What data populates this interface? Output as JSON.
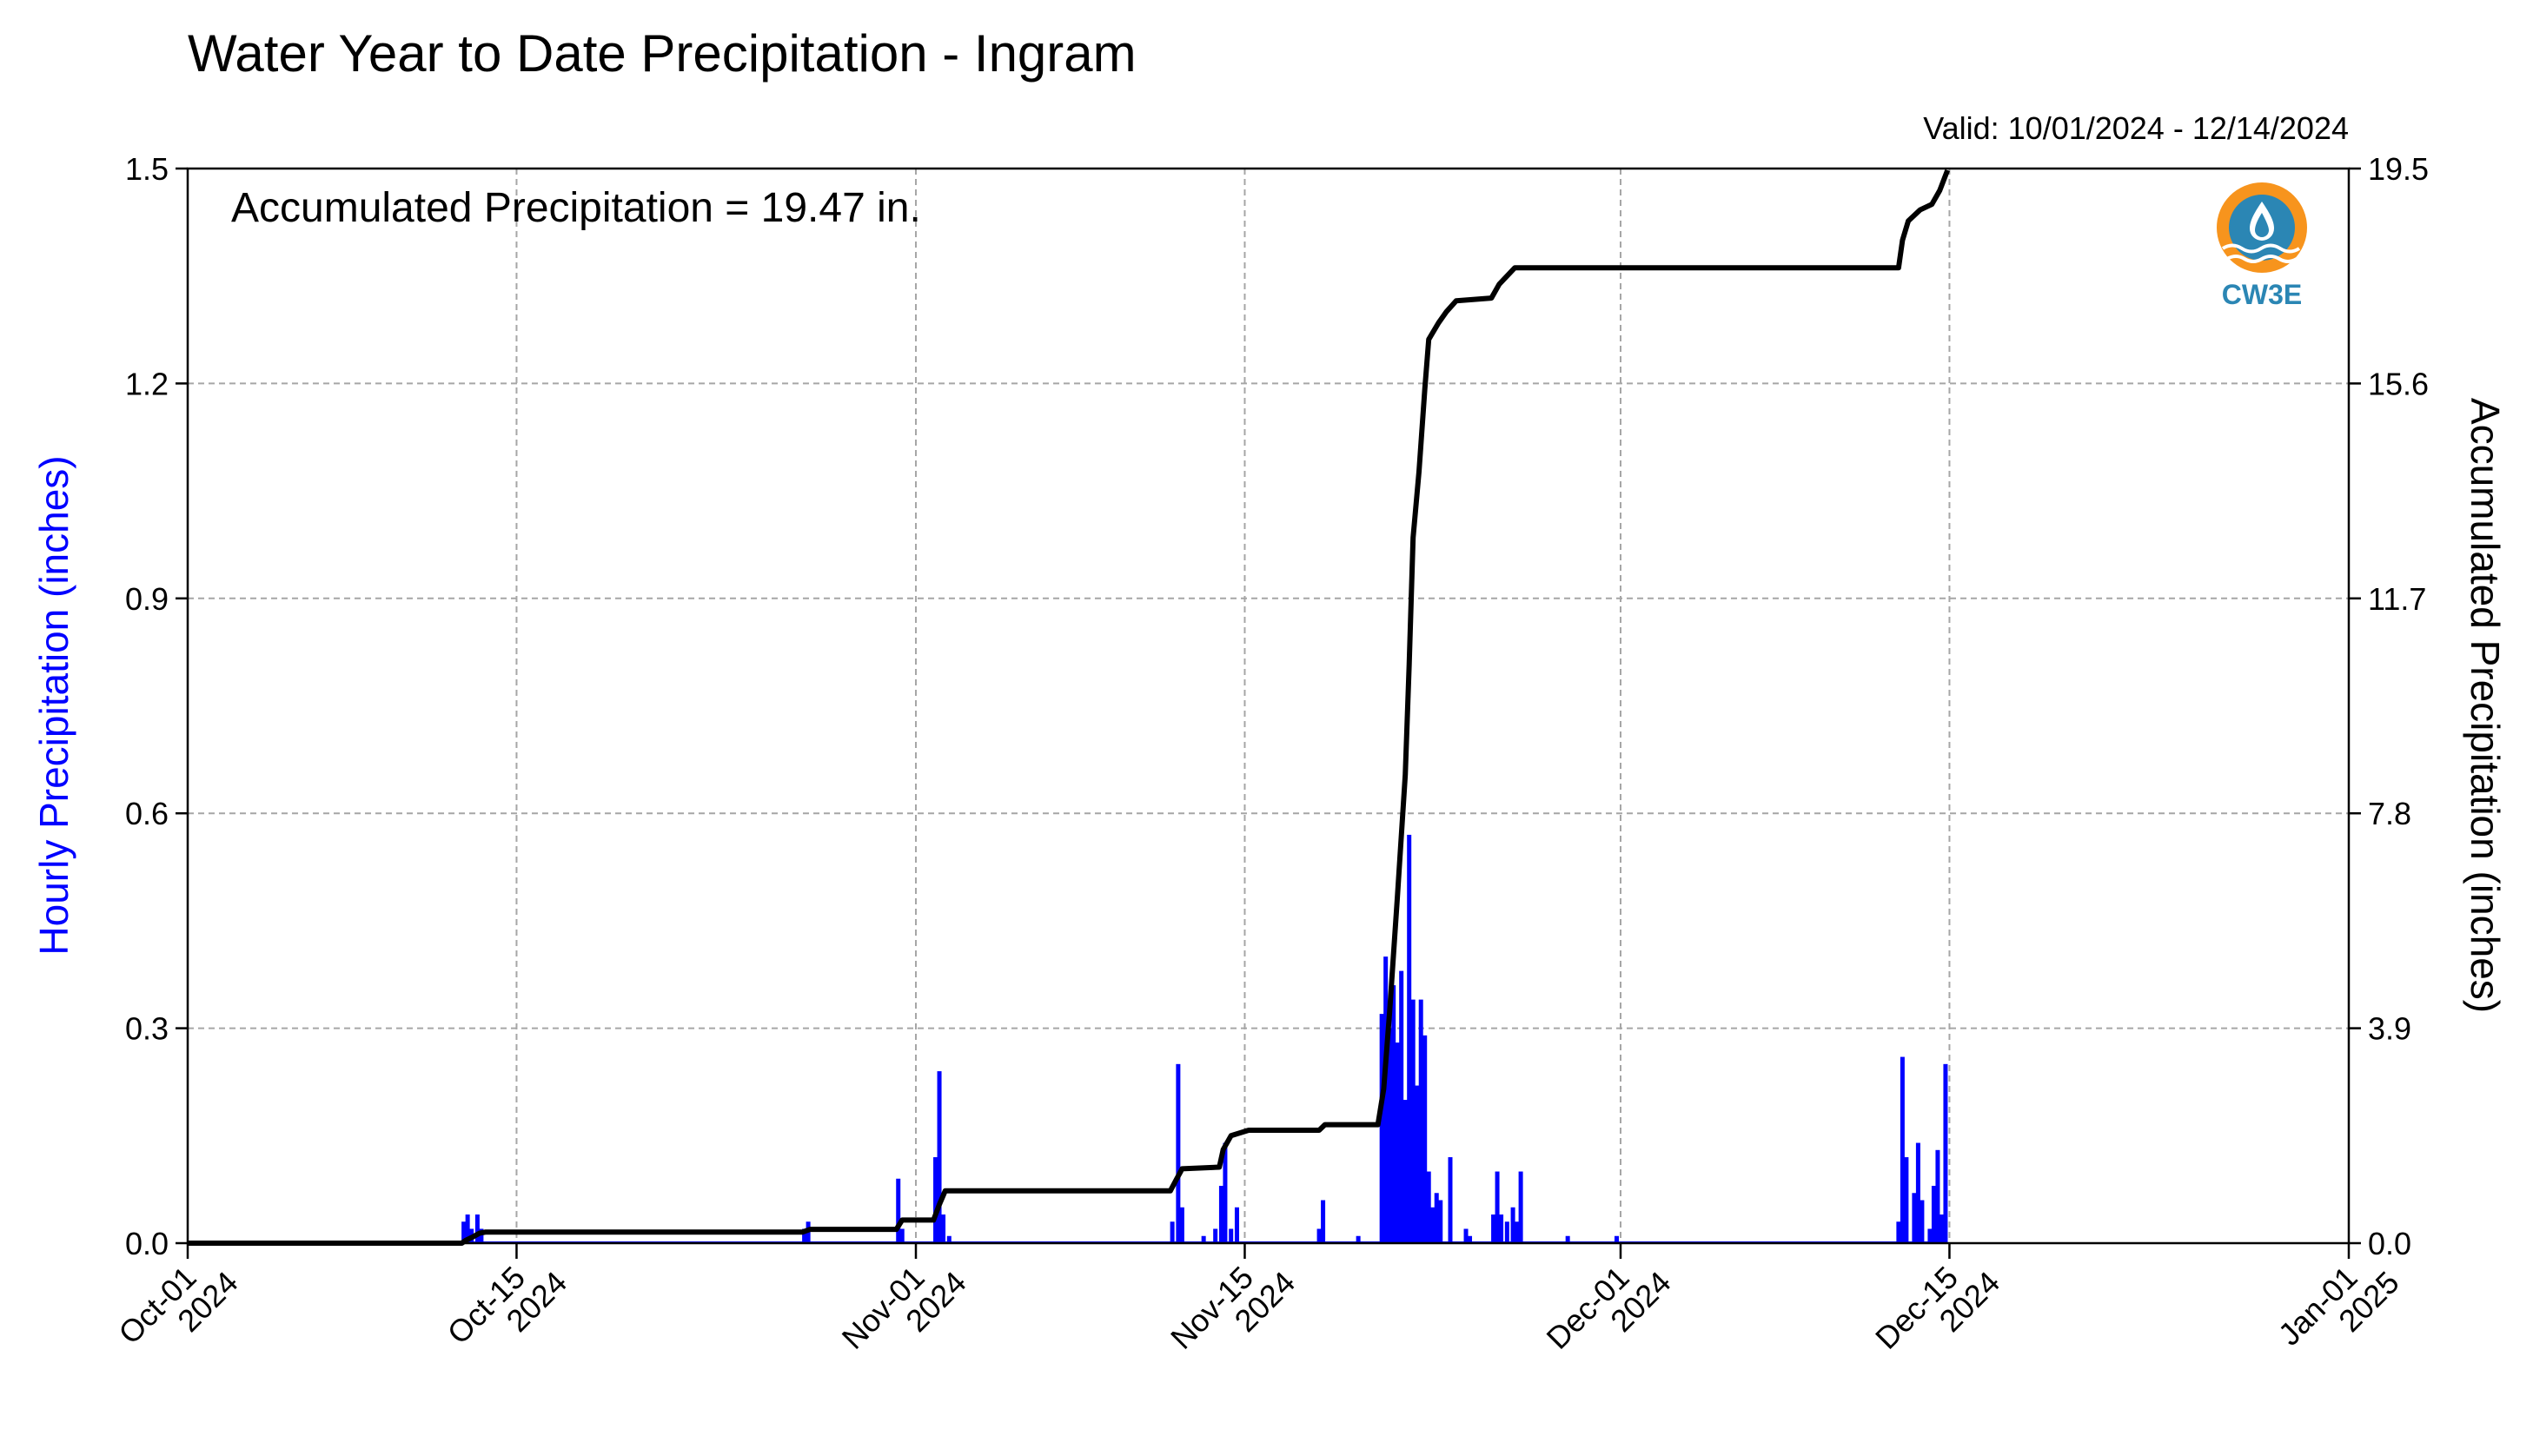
{
  "chart_data": {
    "type": "bar",
    "title": "Water Year to Date Precipitation - Ingram",
    "valid_text": "Valid: 10/01/2024 - 12/14/2024",
    "annotation": "Accumulated Precipitation = 19.47 in.",
    "logo_text": "CW3E",
    "y_left": {
      "label": "Hourly Precipitation (inches)",
      "lim": [
        0,
        1.5
      ],
      "ticks": [
        "0.0",
        "0.3",
        "0.6",
        "0.9",
        "1.2",
        "1.5"
      ],
      "color": "#0000ff"
    },
    "y_right": {
      "label": "Accumulated Precipitation (inches)",
      "lim": [
        0,
        19.5
      ],
      "ticks": [
        "0.0",
        "3.9",
        "7.8",
        "11.7",
        "15.6",
        "19.5"
      ]
    },
    "x_axis": {
      "range": [
        "2024-10-01",
        "2025-01-01"
      ],
      "ticks": [
        {
          "date": "2024-10-01",
          "line1": "Oct-01",
          "line2": "2024"
        },
        {
          "date": "2024-10-15",
          "line1": "Oct-15",
          "line2": "2024"
        },
        {
          "date": "2024-11-01",
          "line1": "Nov-01",
          "line2": "2024"
        },
        {
          "date": "2024-11-15",
          "line1": "Nov-15",
          "line2": "2024"
        },
        {
          "date": "2024-12-01",
          "line1": "Dec-01",
          "line2": "2024"
        },
        {
          "date": "2024-12-15",
          "line1": "Dec-15",
          "line2": "2024"
        },
        {
          "date": "2025-01-01",
          "line1": "Jan-01",
          "line2": "2025"
        }
      ]
    },
    "grid": true,
    "series": [
      {
        "name": "Hourly Precipitation",
        "type": "bar",
        "color": "#0000ff",
        "points": [
          [
            "2024-10-12 18:00",
            0.03
          ],
          [
            "2024-10-12 22:00",
            0.04
          ],
          [
            "2024-10-13 02:00",
            0.02
          ],
          [
            "2024-10-13 08:00",
            0.04
          ],
          [
            "2024-10-13 12:00",
            0.02
          ],
          [
            "2024-10-27 06:00",
            0.02
          ],
          [
            "2024-10-27 10:00",
            0.03
          ],
          [
            "2024-10-31 06:00",
            0.09
          ],
          [
            "2024-10-31 10:00",
            0.02
          ],
          [
            "2024-11-01 20:00",
            0.12
          ],
          [
            "2024-11-02 00:00",
            0.24
          ],
          [
            "2024-11-02 04:00",
            0.04
          ],
          [
            "2024-11-02 10:00",
            0.01
          ],
          [
            "2024-11-11 22:00",
            0.03
          ],
          [
            "2024-11-12 04:00",
            0.25
          ],
          [
            "2024-11-12 08:00",
            0.05
          ],
          [
            "2024-11-13 06:00",
            0.01
          ],
          [
            "2024-11-13 18:00",
            0.02
          ],
          [
            "2024-11-14 00:00",
            0.08
          ],
          [
            "2024-11-14 04:00",
            0.14
          ],
          [
            "2024-11-14 10:00",
            0.02
          ],
          [
            "2024-11-14 16:00",
            0.05
          ],
          [
            "2024-11-18 04:00",
            0.02
          ],
          [
            "2024-11-18 08:00",
            0.06
          ],
          [
            "2024-11-19 20:00",
            0.01
          ],
          [
            "2024-11-20 20:00",
            0.32
          ],
          [
            "2024-11-21 00:00",
            0.4
          ],
          [
            "2024-11-21 04:00",
            0.3
          ],
          [
            "2024-11-21 08:00",
            0.36
          ],
          [
            "2024-11-21 12:00",
            0.28
          ],
          [
            "2024-11-21 16:00",
            0.38
          ],
          [
            "2024-11-21 20:00",
            0.2
          ],
          [
            "2024-11-22 00:00",
            0.57
          ],
          [
            "2024-11-22 04:00",
            0.34
          ],
          [
            "2024-11-22 08:00",
            0.22
          ],
          [
            "2024-11-22 12:00",
            0.34
          ],
          [
            "2024-11-22 16:00",
            0.29
          ],
          [
            "2024-11-22 20:00",
            0.1
          ],
          [
            "2024-11-23 00:00",
            0.05
          ],
          [
            "2024-11-23 04:00",
            0.07
          ],
          [
            "2024-11-23 08:00",
            0.06
          ],
          [
            "2024-11-23 18:00",
            0.12
          ],
          [
            "2024-11-24 10:00",
            0.02
          ],
          [
            "2024-11-24 14:00",
            0.01
          ],
          [
            "2024-11-25 14:00",
            0.04
          ],
          [
            "2024-11-25 18:00",
            0.1
          ],
          [
            "2024-11-25 22:00",
            0.04
          ],
          [
            "2024-11-26 04:00",
            0.03
          ],
          [
            "2024-11-26 10:00",
            0.05
          ],
          [
            "2024-11-26 14:00",
            0.03
          ],
          [
            "2024-11-26 18:00",
            0.1
          ],
          [
            "2024-11-28 18:00",
            0.01
          ],
          [
            "2024-11-30 20:00",
            0.01
          ],
          [
            "2024-12-12 20:00",
            0.03
          ],
          [
            "2024-12-13 00:00",
            0.26
          ],
          [
            "2024-12-13 04:00",
            0.12
          ],
          [
            "2024-12-13 12:00",
            0.07
          ],
          [
            "2024-12-13 16:00",
            0.14
          ],
          [
            "2024-12-13 20:00",
            0.06
          ],
          [
            "2024-12-14 04:00",
            0.02
          ],
          [
            "2024-12-14 08:00",
            0.08
          ],
          [
            "2024-12-14 12:00",
            0.13
          ],
          [
            "2024-12-14 16:00",
            0.04
          ],
          [
            "2024-12-14 20:00",
            0.25
          ]
        ]
      },
      {
        "name": "Accumulated Precipitation",
        "type": "line",
        "color": "#000000",
        "points": [
          [
            "2024-10-01 00:00",
            0.0
          ],
          [
            "2024-10-12 16:00",
            0.0
          ],
          [
            "2024-10-12 20:00",
            0.05
          ],
          [
            "2024-10-13 04:00",
            0.12
          ],
          [
            "2024-10-13 10:00",
            0.18
          ],
          [
            "2024-10-13 16:00",
            0.2
          ],
          [
            "2024-10-27 04:00",
            0.2
          ],
          [
            "2024-10-27 12:00",
            0.25
          ],
          [
            "2024-10-31 04:00",
            0.25
          ],
          [
            "2024-10-31 10:00",
            0.42
          ],
          [
            "2024-11-01 18:00",
            0.42
          ],
          [
            "2024-11-02 00:00",
            0.7
          ],
          [
            "2024-11-02 06:00",
            0.95
          ],
          [
            "2024-11-11 20:00",
            0.95
          ],
          [
            "2024-11-12 02:00",
            1.15
          ],
          [
            "2024-11-12 08:00",
            1.35
          ],
          [
            "2024-11-13 22:00",
            1.38
          ],
          [
            "2024-11-14 02:00",
            1.7
          ],
          [
            "2024-11-14 10:00",
            1.95
          ],
          [
            "2024-11-15 04:00",
            2.05
          ],
          [
            "2024-11-18 04:00",
            2.05
          ],
          [
            "2024-11-18 10:00",
            2.15
          ],
          [
            "2024-11-20 16:00",
            2.15
          ],
          [
            "2024-11-20 22:00",
            2.8
          ],
          [
            "2024-11-21 04:00",
            4.2
          ],
          [
            "2024-11-21 12:00",
            6.3
          ],
          [
            "2024-11-21 20:00",
            8.5
          ],
          [
            "2024-11-22 00:00",
            10.5
          ],
          [
            "2024-11-22 04:00",
            12.8
          ],
          [
            "2024-11-22 10:00",
            14.0
          ],
          [
            "2024-11-22 16:00",
            15.5
          ],
          [
            "2024-11-22 20:00",
            16.4
          ],
          [
            "2024-11-23 06:00",
            16.7
          ],
          [
            "2024-11-23 14:00",
            16.9
          ],
          [
            "2024-11-24 00:00",
            17.1
          ],
          [
            "2024-11-25 12:00",
            17.15
          ],
          [
            "2024-11-25 20:00",
            17.4
          ],
          [
            "2024-11-26 04:00",
            17.55
          ],
          [
            "2024-11-26 12:00",
            17.7
          ],
          [
            "2024-12-12 20:00",
            17.7
          ],
          [
            "2024-12-13 00:00",
            18.2
          ],
          [
            "2024-12-13 06:00",
            18.55
          ],
          [
            "2024-12-13 18:00",
            18.75
          ],
          [
            "2024-12-14 06:00",
            18.85
          ],
          [
            "2024-12-14 14:00",
            19.1
          ],
          [
            "2024-12-14 22:00",
            19.47
          ]
        ]
      }
    ]
  }
}
